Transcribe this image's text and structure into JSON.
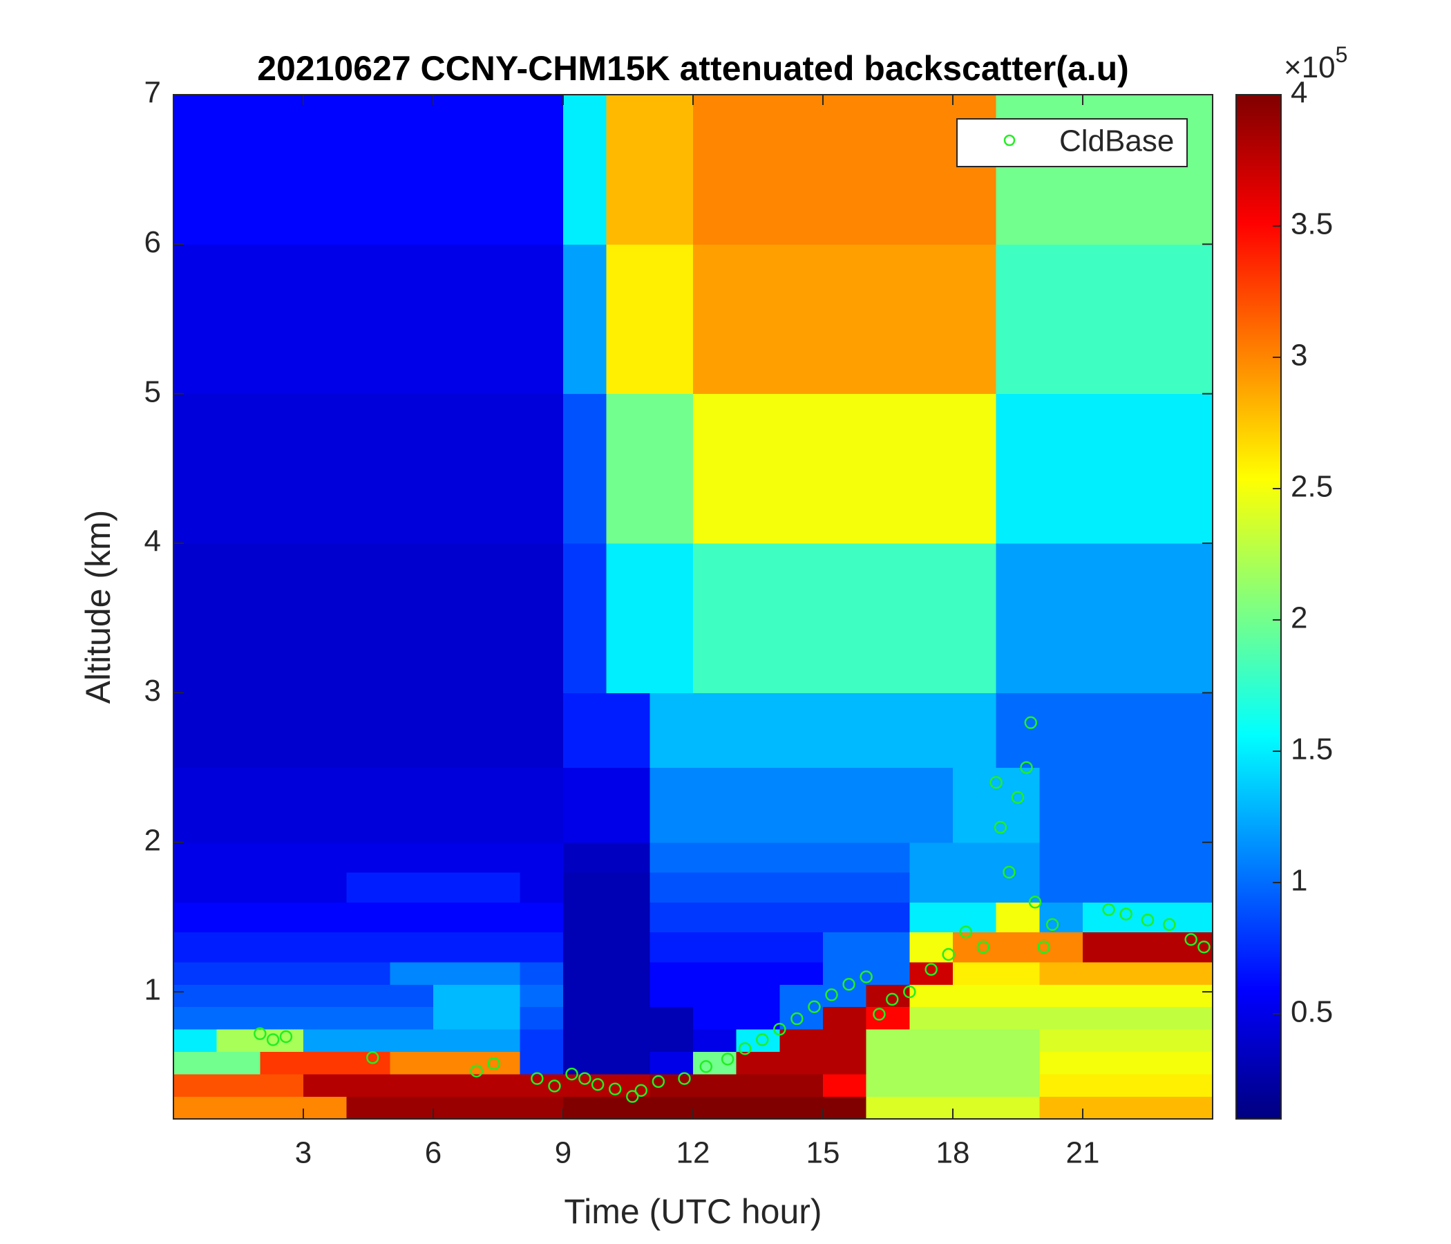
{
  "chart_data": {
    "type": "heatmap",
    "title": "20210627 CCNY-CHM15K attenuated backscatter(a.u)",
    "x_label": "Time (UTC hour)",
    "y_label": "Altitude (km)",
    "xlim": [
      0,
      24
    ],
    "ylim": [
      0.15,
      7
    ],
    "xticks": [
      3,
      6,
      9,
      12,
      15,
      18,
      21
    ],
    "yticks": [
      1,
      2,
      3,
      4,
      5,
      6,
      7
    ],
    "xbins": [
      0,
      1,
      2,
      3,
      4,
      5,
      6,
      7,
      8,
      9,
      10,
      11,
      12,
      13,
      14,
      15,
      16,
      17,
      18,
      19,
      20,
      21,
      22,
      23,
      24
    ],
    "ybins": [
      0.15,
      0.3,
      0.45,
      0.6,
      0.75,
      0.9,
      1.05,
      1.2,
      1.4,
      1.6,
      1.8,
      2.0,
      2.5,
      3,
      4,
      5,
      6,
      7
    ],
    "z": [
      [
        3.0,
        3.0,
        3.0,
        3.0,
        3.9,
        3.9,
        3.9,
        3.9,
        3.9,
        4.0,
        4.0,
        4.0,
        4.0,
        4.0,
        4.0,
        4.0,
        2.4,
        2.4,
        2.4,
        2.4,
        2.8,
        2.8,
        2.8,
        2.8
      ],
      [
        3.2,
        3.2,
        3.2,
        3.8,
        3.8,
        3.8,
        3.8,
        3.8,
        3.8,
        3.8,
        3.8,
        3.9,
        3.9,
        3.9,
        3.9,
        3.5,
        2.2,
        2.2,
        2.2,
        2.2,
        2.6,
        2.6,
        2.6,
        2.6
      ],
      [
        2.0,
        2.0,
        3.3,
        3.3,
        3.3,
        3.0,
        3.0,
        3.0,
        0.8,
        0.3,
        0.3,
        0.5,
        2.0,
        3.8,
        3.8,
        3.8,
        2.2,
        2.2,
        2.2,
        2.2,
        2.5,
        2.5,
        2.5,
        2.5
      ],
      [
        1.5,
        2.2,
        2.2,
        1.2,
        1.2,
        1.2,
        1.2,
        1.2,
        0.8,
        0.3,
        0.3,
        0.3,
        0.5,
        1.5,
        3.8,
        3.8,
        2.2,
        2.2,
        2.2,
        2.2,
        2.4,
        2.4,
        2.4,
        2.4
      ],
      [
        1.0,
        1.0,
        1.0,
        1.0,
        1.0,
        1.0,
        1.3,
        1.3,
        0.9,
        0.3,
        0.3,
        0.3,
        0.6,
        0.6,
        1.0,
        3.8,
        3.5,
        2.3,
        2.3,
        2.3,
        2.3,
        2.3,
        2.3,
        2.3
      ],
      [
        0.9,
        0.9,
        0.9,
        0.9,
        0.9,
        0.9,
        1.3,
        1.3,
        1.0,
        0.3,
        0.3,
        0.6,
        0.6,
        0.6,
        1.0,
        1.0,
        3.8,
        2.5,
        2.5,
        2.5,
        2.5,
        2.5,
        2.5,
        2.5
      ],
      [
        0.8,
        0.8,
        0.8,
        0.8,
        0.8,
        1.1,
        1.1,
        1.1,
        0.9,
        0.3,
        0.3,
        0.6,
        0.6,
        0.6,
        0.6,
        1.0,
        1.0,
        3.7,
        2.6,
        2.6,
        2.8,
        2.8,
        2.8,
        2.8
      ],
      [
        0.7,
        0.7,
        0.7,
        0.7,
        0.7,
        0.7,
        0.7,
        0.7,
        0.7,
        0.3,
        0.3,
        0.7,
        0.7,
        0.7,
        0.7,
        1.0,
        1.0,
        2.5,
        3.0,
        3.0,
        3.0,
        3.8,
        3.8,
        3.8
      ],
      [
        0.6,
        0.6,
        0.6,
        0.6,
        0.6,
        0.6,
        0.6,
        0.6,
        0.6,
        0.3,
        0.3,
        0.8,
        0.8,
        0.8,
        0.8,
        0.8,
        0.8,
        1.5,
        1.5,
        2.5,
        1.2,
        1.5,
        1.5,
        1.5
      ],
      [
        0.5,
        0.5,
        0.5,
        0.5,
        0.7,
        0.7,
        0.7,
        0.7,
        0.5,
        0.3,
        0.3,
        0.9,
        0.9,
        0.9,
        0.9,
        0.9,
        0.9,
        1.2,
        1.2,
        1.2,
        1.0,
        1.0,
        1.0,
        1.0
      ],
      [
        0.5,
        0.5,
        0.5,
        0.5,
        0.5,
        0.5,
        0.5,
        0.5,
        0.5,
        0.35,
        0.35,
        1.0,
        1.0,
        1.0,
        1.0,
        1.0,
        1.0,
        1.2,
        1.2,
        1.2,
        1.0,
        1.0,
        1.0,
        1.0
      ],
      [
        0.45,
        0.45,
        0.45,
        0.45,
        0.45,
        0.45,
        0.45,
        0.45,
        0.45,
        0.5,
        0.5,
        1.1,
        1.1,
        1.1,
        1.1,
        1.1,
        1.1,
        1.1,
        1.3,
        1.3,
        1.0,
        1.0,
        1.0,
        1.0
      ],
      [
        0.4,
        0.4,
        0.4,
        0.4,
        0.4,
        0.4,
        0.4,
        0.4,
        0.4,
        0.7,
        0.7,
        1.3,
        1.3,
        1.3,
        1.3,
        1.3,
        1.3,
        1.3,
        1.3,
        1.0,
        1.0,
        1.0,
        1.0,
        1.0
      ],
      [
        0.4,
        0.4,
        0.4,
        0.4,
        0.4,
        0.4,
        0.4,
        0.4,
        0.4,
        0.8,
        1.5,
        1.5,
        1.8,
        1.8,
        1.8,
        1.8,
        1.8,
        1.8,
        1.8,
        1.2,
        1.2,
        1.2,
        1.2,
        1.2
      ],
      [
        0.45,
        0.45,
        0.45,
        0.45,
        0.45,
        0.45,
        0.45,
        0.45,
        0.45,
        0.9,
        2.0,
        2.0,
        2.5,
        2.5,
        2.5,
        2.5,
        2.5,
        2.5,
        2.5,
        1.5,
        1.5,
        1.5,
        1.5,
        1.5
      ],
      [
        0.5,
        0.5,
        0.5,
        0.5,
        0.5,
        0.5,
        0.5,
        0.5,
        0.5,
        1.2,
        2.6,
        2.6,
        2.9,
        2.9,
        2.9,
        2.9,
        2.9,
        2.9,
        2.9,
        1.8,
        1.8,
        1.8,
        1.8,
        1.8
      ],
      [
        0.6,
        0.6,
        0.6,
        0.6,
        0.6,
        0.6,
        0.6,
        0.6,
        0.6,
        1.5,
        2.8,
        2.8,
        3.0,
        3.0,
        3.0,
        3.0,
        3.0,
        3.0,
        3.0,
        2.0,
        2.0,
        2.0,
        2.0,
        2.0
      ]
    ],
    "colormap": "jet",
    "clim": [
      0.1,
      4
    ],
    "colorbar_ticks": [
      0.5,
      1,
      1.5,
      2,
      2.5,
      3,
      3.5,
      4
    ],
    "colorbar_scale": {
      "base": "×10",
      "exponent": "5"
    },
    "legend": "northeast",
    "series": [
      {
        "name": "CldBase",
        "type": "scatter",
        "color": "#22ee22",
        "x": [
          2.0,
          2.3,
          2.6,
          4.6,
          7.0,
          7.4,
          8.4,
          8.8,
          9.2,
          9.5,
          9.8,
          10.2,
          10.6,
          10.8,
          11.2,
          11.8,
          12.3,
          12.8,
          13.2,
          13.6,
          14.0,
          14.4,
          14.8,
          15.2,
          15.6,
          16.0,
          16.3,
          16.6,
          17.0,
          17.5,
          17.9,
          18.3,
          18.7,
          19.0,
          19.1,
          19.3,
          19.5,
          19.7,
          19.8,
          19.9,
          20.1,
          20.3,
          21.6,
          22.0,
          22.5,
          23.0,
          23.5,
          23.8
        ],
        "y": [
          0.72,
          0.68,
          0.7,
          0.56,
          0.47,
          0.52,
          0.42,
          0.37,
          0.45,
          0.42,
          0.38,
          0.35,
          0.3,
          0.34,
          0.4,
          0.42,
          0.5,
          0.55,
          0.62,
          0.68,
          0.75,
          0.82,
          0.9,
          0.98,
          1.05,
          1.1,
          0.85,
          0.95,
          1.0,
          1.15,
          1.25,
          1.4,
          1.3,
          2.4,
          2.1,
          1.8,
          2.3,
          2.5,
          2.8,
          1.6,
          1.3,
          1.45,
          1.55,
          1.52,
          1.48,
          1.45,
          1.35,
          1.3
        ]
      }
    ]
  }
}
